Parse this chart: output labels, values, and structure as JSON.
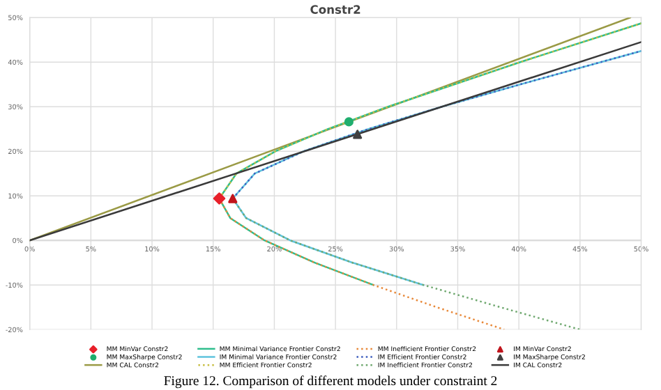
{
  "chart_data": {
    "type": "line",
    "title": "Constr2",
    "xlim": [
      0,
      50
    ],
    "ylim": [
      -20,
      50
    ],
    "xticks": [
      {
        "value": 0,
        "label": "0%"
      },
      {
        "value": 5,
        "label": "5%"
      },
      {
        "value": 10,
        "label": "10%"
      },
      {
        "value": 15,
        "label": "15%"
      },
      {
        "value": 20,
        "label": "20%"
      },
      {
        "value": 25,
        "label": "25%"
      },
      {
        "value": 30,
        "label": "30%"
      },
      {
        "value": 35,
        "label": "35%"
      },
      {
        "value": 40,
        "label": "40%"
      },
      {
        "value": 45,
        "label": "45%"
      },
      {
        "value": 50,
        "label": "50%"
      }
    ],
    "yticks": [
      {
        "value": -20,
        "label": "-20%"
      },
      {
        "value": -10,
        "label": "-10%"
      },
      {
        "value": 0,
        "label": "0%"
      },
      {
        "value": 10,
        "label": "10%"
      },
      {
        "value": 20,
        "label": "20%"
      },
      {
        "value": 30,
        "label": "30%"
      },
      {
        "value": 40,
        "label": "40%"
      },
      {
        "value": 50,
        "label": "50%"
      }
    ],
    "grid": true,
    "legend": "bottom",
    "series": [
      {
        "name": "MM MinVar Constr2",
        "type": "scatter",
        "marker": "diamond",
        "color": "#e8202a",
        "x": [
          15.5
        ],
        "values": [
          9.4
        ]
      },
      {
        "name": "MM MaxSharpe Constr2",
        "type": "scatter",
        "marker": "circle",
        "color": "#1fae6e",
        "x": [
          26.1
        ],
        "values": [
          26.6
        ]
      },
      {
        "name": "MM CAL Constr2",
        "type": "line",
        "line_style": "solid",
        "color": "#9a9a45",
        "x": [
          0,
          49.1
        ],
        "values": [
          0,
          50
        ]
      },
      {
        "name": "MM Minimal Variance Frontier Constr2",
        "type": "line",
        "line_style": "solid",
        "color": "#2ebd8c",
        "x": [
          28.1,
          23.3,
          19.2,
          16.4,
          15.5,
          16.9,
          20.1,
          24.4,
          29.3,
          40.1,
          50.0
        ],
        "values": [
          -10,
          -5,
          0,
          5,
          9.4,
          15,
          20,
          25,
          30,
          40,
          48.7
        ]
      },
      {
        "name": "IM Minimal Variance Frontier Constr2",
        "type": "line",
        "line_style": "solid",
        "color": "#5ec3dd",
        "x": [
          32.2,
          26.4,
          21.3,
          17.7,
          16.6,
          18.4,
          22.4,
          27.7,
          33.7,
          40.1,
          50.0
        ],
        "values": [
          -10,
          -5,
          0,
          5,
          9.4,
          15,
          20,
          25,
          30,
          35,
          42.5
        ]
      },
      {
        "name": "MM Efficient Frontier Constr2",
        "type": "line",
        "line_style": "dotted",
        "color": "#c8bf45",
        "x": [
          15.5,
          16.9,
          20.1,
          24.4,
          29.3,
          40.1,
          50.0
        ],
        "values": [
          9.4,
          15,
          20,
          25,
          30,
          40,
          48.7
        ]
      },
      {
        "name": "MM Inefficient Frontier Constr2",
        "type": "line",
        "line_style": "dotted",
        "color": "#e8893a",
        "x": [
          15.5,
          16.4,
          19.2,
          23.3,
          28.1,
          33.3,
          38.8
        ],
        "values": [
          9.4,
          5,
          0,
          -5,
          -10,
          -15,
          -20
        ]
      },
      {
        "name": "IM Efficient Frontier Constr2",
        "type": "line",
        "line_style": "dotted",
        "color": "#3f5fbf",
        "x": [
          16.6,
          18.4,
          22.4,
          27.7,
          33.7,
          40.1,
          50.0
        ],
        "values": [
          9.4,
          15,
          20,
          25,
          30,
          35,
          42.5
        ]
      },
      {
        "name": "IM Inefficient Frontier Constr2",
        "type": "line",
        "line_style": "dotted",
        "color": "#6fa86f",
        "x": [
          16.6,
          17.7,
          21.3,
          26.4,
          32.2,
          38.5,
          45.0
        ],
        "values": [
          9.4,
          5,
          0,
          -5,
          -10,
          -15,
          -20
        ]
      },
      {
        "name": "IM MinVar Constr2",
        "type": "scatter",
        "marker": "triangle",
        "color": "#c0151d",
        "x": [
          16.6
        ],
        "values": [
          9.4
        ]
      },
      {
        "name": "IM MaxSharpe Constr2",
        "type": "scatter",
        "marker": "triangle",
        "color": "#404040",
        "x": [
          26.8
        ],
        "values": [
          23.8
        ]
      },
      {
        "name": "IM CAL Constr2",
        "type": "line",
        "line_style": "solid",
        "color": "#3a3a3a",
        "x": [
          0,
          50
        ],
        "values": [
          0,
          44.5
        ]
      }
    ],
    "annotations": [
      "Figure 12. Comparison of different models under constraint 2"
    ]
  }
}
